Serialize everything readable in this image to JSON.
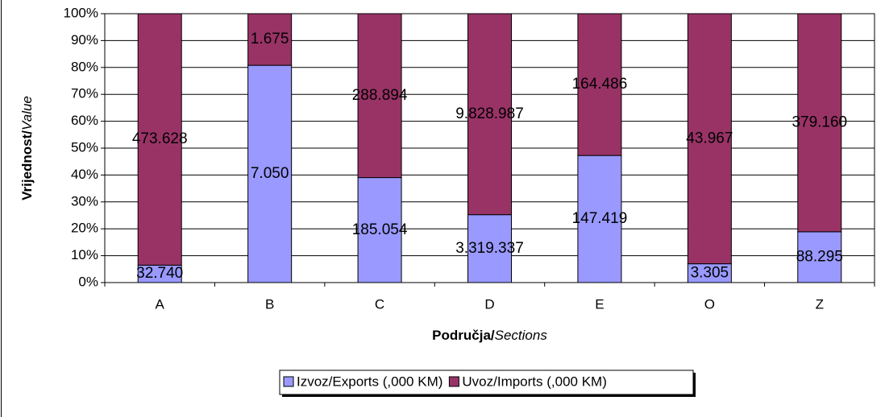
{
  "chart_data": {
    "type": "bar",
    "stacking": "percent",
    "ylabel": [
      "Vrijednost/",
      "Value"
    ],
    "xlabel": [
      "Područja/",
      "Sections"
    ],
    "categories": [
      "A",
      "B",
      "C",
      "D",
      "E",
      "O",
      "Z"
    ],
    "series": [
      {
        "name": "Izvoz/Exports (,000 KM)",
        "color": "#9999ff",
        "values": [
          32740,
          7050,
          185054,
          3319337,
          147419,
          3305,
          88295
        ],
        "value_labels": [
          "32.740",
          "7.050",
          "185.054",
          "3.319.337",
          "147.419",
          "3.305",
          "88.295"
        ]
      },
      {
        "name": "Uvoz/Imports (,000 KM)",
        "color": "#993366",
        "values": [
          473628,
          1675,
          288894,
          9828987,
          164486,
          43967,
          379160
        ],
        "value_labels": [
          "473.628",
          "1.675",
          "288.894",
          "9.828.987",
          "164.486",
          "43.967",
          "379.160"
        ]
      }
    ],
    "ylim": [
      0,
      100
    ],
    "yticks": [
      {
        "value": 0,
        "label": "0%"
      },
      {
        "value": 10,
        "label": "10%"
      },
      {
        "value": 20,
        "label": "20%"
      },
      {
        "value": 30,
        "label": "30%"
      },
      {
        "value": 40,
        "label": "40%"
      },
      {
        "value": 50,
        "label": "50%"
      },
      {
        "value": 60,
        "label": "60%"
      },
      {
        "value": 70,
        "label": "70%"
      },
      {
        "value": 80,
        "label": "80%"
      },
      {
        "value": 90,
        "label": "90%"
      },
      {
        "value": 100,
        "label": "100%"
      }
    ],
    "grid": true,
    "legend": "bottom"
  }
}
